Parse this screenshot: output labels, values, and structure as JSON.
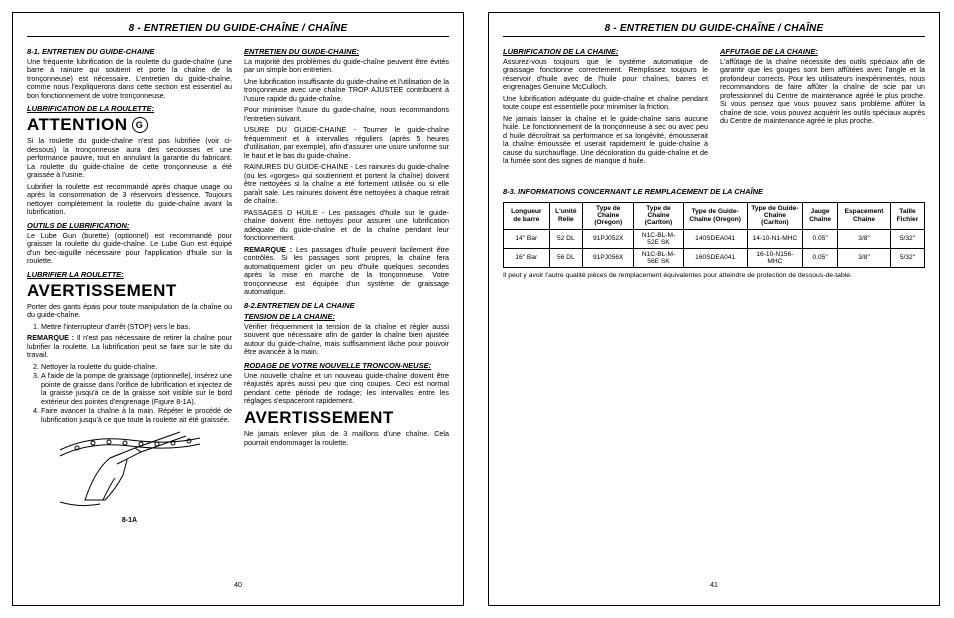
{
  "section_title": "8 - ENTRETIEN DU GUIDE-CHAÎNE / CHAÎNE",
  "left": {
    "col1": {
      "h1": "8-1. ENTRETIEN DU GUIDE-CHAINE",
      "p1": "Une fréquente lubrification de la roulette du guide-chaîne (une barre à rainure qui soutient et porte la chaîne de la tronçonneuse) est nécessaire. L'entretien du guide-chaîne, comme nous l'expliquerons dans cette section est essentiel au bon fonctionnement de votre tronçonneuse.",
      "h2": "LUBRIFICATION DE LA ROULETTE:",
      "big1": "ATTENTION",
      "circ1": "G",
      "p2": "Si la roulette du guide-chaîne n'est pas lubrifiée (voir ci-dessous) la tronçonneuse aura des secousses et une performance pauvre, tout en annulant la garantie du fabricant. La roulette du guide-chaîne de cette tronçonneuse a été graissée à l'usine.",
      "p3": "Lubrifier la roulette est recommandé après chaque usage ou après la consommation de 3 réservoirs d'essence. Toujours nettoyer complètement la roulette du guide-chaîne avant la lubrification.",
      "h3": "OUTILS DE LUBRIFICATION:",
      "p4": "Le Lube Gun (burette) (optionnel) est recommandé pour graisser la roulette du guide-chaîne. Le Lube Gun est équipé d'un bec-aiguille nécessaire pour l'application d'huile sur la roulette.",
      "h4": "LUBRIFIER LA ROULETTE:",
      "big2": "AVERTISSEMENT",
      "p5": "Porter des gants épais pour toute manipulation de la chaîne ou du guide-chaîne.",
      "li1": "Mettre l'interrupteur d'arrêt (STOP) vers le bas.",
      "rem": "REMARQUE :",
      "remtxt": " Il n'est pas nécessaire de retirer la chaîne pour lubrifier la roulette. La lubrification peut se faire sur le site du travail.",
      "li2": "Nettoyer la roulette du guide-chaîne.",
      "li3": "A l'aide de la pompe de graissage (optionnelle), insérez une pointe de graisse dans l'orifice de lubrification et injectez de la graisse jusqu'à ce de la graisse soit visible sur le bord extérieur des pointes d'engrenage (Figure 8-1A).",
      "li4": "Faire avancer la chaîne à la main. Répéter le procédé de lubrification jusqu'à ce que toute la roulette ait été graissée.",
      "figcap": "8-1A"
    },
    "col2": {
      "h1": "ENTRETIEN DU GUIDE-CHAINE:",
      "p1": "La majorité des problèmes du guide-chaîne peuvent être évités par un simple bon entretien.",
      "p2": "Une lubrification insuffisante du guide-chaîne et l'utilisation de la tronçonneuse avec une chaîne TROP AJUSTEE contribuent à l'usure rapide du guide-chaîne.",
      "p3": "Pour minimiser l'usure du guide-chaîne, nous recommandons l'entretien suivant.",
      "p4": "USURE DU GUIDE-CHAINE - Tourner le guide-chaîne fréquemment et à intervalles réguliers (après 5 heures d'utilisation, par exemple), afin d'assurer une usure uniforme sur le haut et le bas du guide-chaîne.",
      "p5": "RAINURES DU GUIDE-CHAINE - Les rainures du guide-chaîne (ou les «gorges» qui soutiennent et portent la chaîne) doivent être nettoyées si la chaîne a été fortement utilisée ou si elle paraît sale. Les rainures doivent être nettoyées à chaque retrait de chaîne.",
      "p6": "PASSAGES D HUILE - Les passages d'huile sur le guide-chaîne doivent être nettoyés pour assurer une lubrification adéquate du guide-chaîne et de la chaîne pendant leur fonctionnement.",
      "rem": "REMARQUE :",
      "remtxt": " Les passages d'huile peuvent facilement être contrôlés. Si les passages sont propres, la chaîne fera automatiquement gicler un peu d'huile quelques secondes après la mise en marche de la tronçonneuse. Votre tronçonneuse est équipée d'un système de graissage automatique.",
      "h2": "8-2.ENTRETIEN DE LA CHAINE",
      "h2b": "TENSION DE LA CHAINE:",
      "p7": "Vérifier fréquemment la tension de la chaîne et régler aussi souvent que nécessaire afin de garder la chaîne bien ajustée autour du guide-chaîne, mais suffisamment lâche pour pouvoir être avancée à la main.",
      "h3": "RODAGE DE VOTRE NOUVELLE TRONCON-NEUSE:",
      "p8": "Une nouvelle chaîne et un nouveau guide-chaîne doivent être réajustés après aussi peu que cinq coupes. Ceci est normal pendant cette période de rodage; les intervalles entre les réglages s'espaceront rapidement.",
      "big": "AVERTISSEMENT",
      "p9": "Ne jamais enlever plus de 3 maillons d'une chaîne. Cela pourrait endommager la roulette."
    },
    "pagenum": "40"
  },
  "right": {
    "col1": {
      "h1": "LUBRIFICATION DE LA CHAINE:",
      "p1": "Assurez-vous toujours que le système automatique de graissage fonctionne correctement. Remplissez toujours le réservoir d'huile avec de l'huile pour chaînes, barres et engrenages Genuine McCulloch.",
      "p2": "Une lubrification adéquate du guide-chaîne et chaîne pendant toute coupe est essentielle pour minimiser la friction.",
      "p3": "Ne jamais laisser la chaîne et le guide-chaîne sans aucune huile. Le fonctionnement de la tronçonneuse à sec ou avec peu d huile décroîtrait sa performance et sa longévité, émousserait la chaîne émoussée et userait rapidement le guide-chaîne à cause du surchauffage. Une décoloration du guide-chaîne et de la fumée sont des signes de manque d huile."
    },
    "col2": {
      "h1": "AFFUTAGE DE LA CHAINE:",
      "p1": "L'affûtage de la chaîne nécessite des outils spéciaux afin de garantir que les gouges sont bien affûtées avec l'angle et la profondeur corrects. Pour les utilisateurs inexpérimentés, nous recommandons de faire affûter la chaîne de scie par un professionnel du Centre de maintenance agréé le plus proche. Si vous pensez que vous pouvez sans problème affûter la chaîne de scie, vous pouvez acquérir les outils spéciaux auprès du Centre de maintenance agréé le plus proche."
    },
    "table": {
      "title": "8-3.   INFORMATIONS CONCERNANT LE REMPLACEMENT DE LA CHAÎNE",
      "headers": [
        "Longueur de barre",
        "L'unité Relie",
        "Type de Chaîne (Oregon)",
        "Type de Chaîne (Carlton)",
        "Type de Guide-Chaîne (Oregon)",
        "Type de Guide-Chaîne (Carlton)",
        "Jauge Chaîne",
        "Espacement Chaîne",
        "Taille Fichier"
      ],
      "rows": [
        [
          "14\" Bar",
          "52 DL",
          "91PJ052X",
          "N1C-BL-M-52E SK",
          "140SDEA041",
          "14-10-N1-MHC",
          "0.05\"",
          "3/8\"",
          "5/32\""
        ],
        [
          "16\" Bar",
          "56 DL",
          "91PJ056X",
          "N1C-BL-M-56E SK",
          "160SDEA041",
          "16-10-N156-MHC",
          "0.05\"",
          "3/8\"",
          "5/32\""
        ]
      ],
      "note": "Il peut y avoir l'autre qualité pièces de remplacement équivalentes pour atteindre de protection de dessous-de-table."
    },
    "pagenum": "41"
  }
}
